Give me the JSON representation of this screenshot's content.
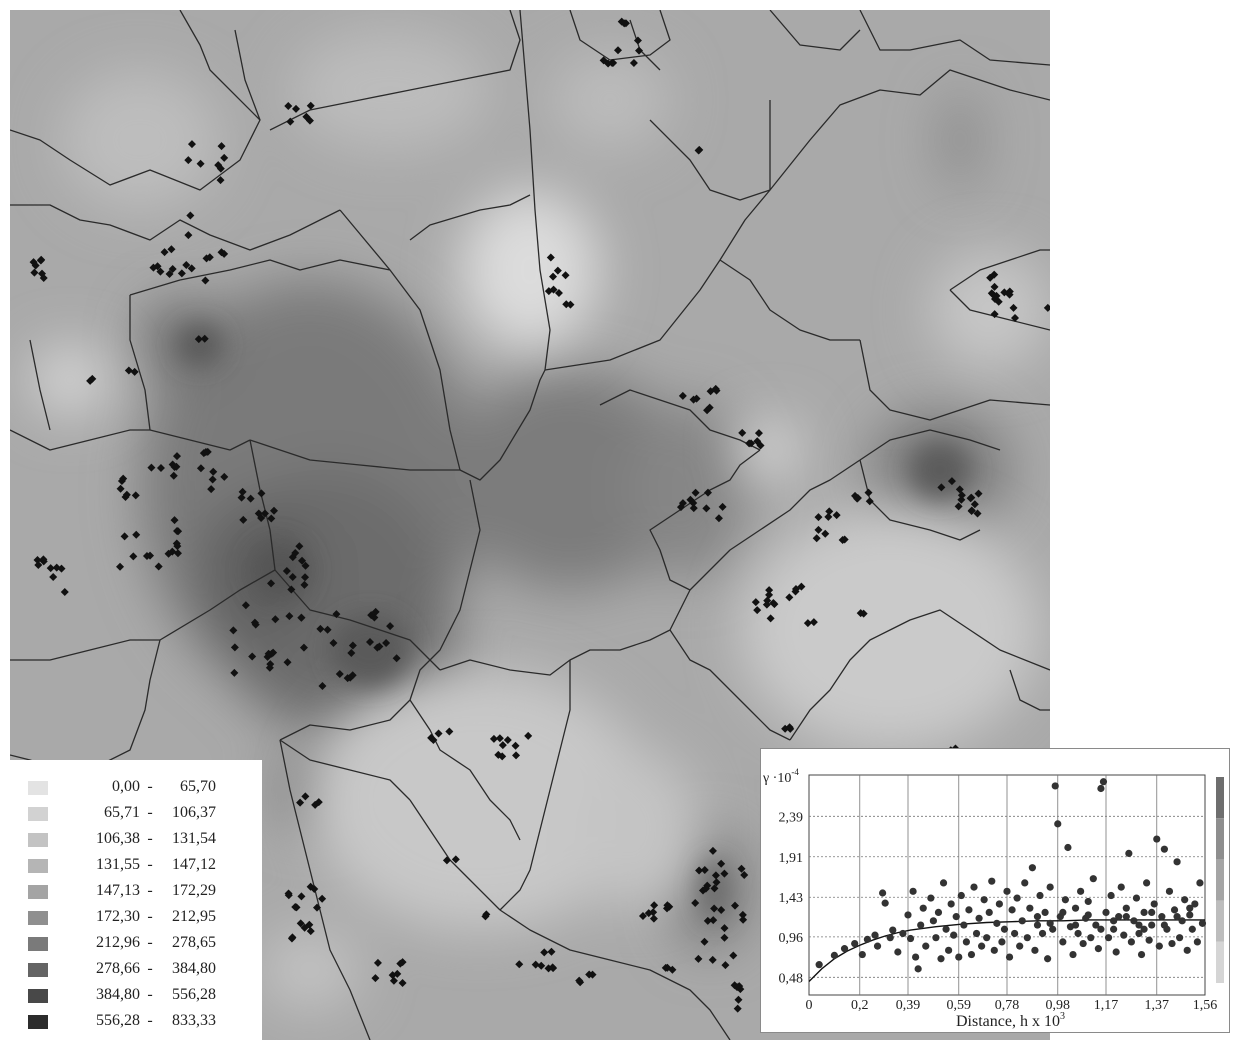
{
  "map": {
    "background_color": "#a9a9a9",
    "boundary_color": "#2a2a2a",
    "marker_color": "#111111",
    "marker_shape": "diamond"
  },
  "legend": {
    "separator": "-",
    "classes": [
      {
        "low": "0,00",
        "high": "65,70",
        "color": "#e3e3e3"
      },
      {
        "low": "65,71",
        "high": "106,37",
        "color": "#d2d2d2"
      },
      {
        "low": "106,38",
        "high": "131,54",
        "color": "#c3c3c3"
      },
      {
        "low": "131,55",
        "high": "147,12",
        "color": "#b5b5b5"
      },
      {
        "low": "147,13",
        "high": "172,29",
        "color": "#a4a4a4"
      },
      {
        "low": "172,30",
        "high": "212,95",
        "color": "#8f8f8f"
      },
      {
        "low": "212,96",
        "high": "278,65",
        "color": "#7a7a7a"
      },
      {
        "low": "278,66",
        "high": "384,80",
        "color": "#646464"
      },
      {
        "low": "384,80",
        "high": "556,28",
        "color": "#484848"
      },
      {
        "low": "556,28",
        "high": "833,33",
        "color": "#2c2c2c"
      }
    ]
  },
  "chart_data": {
    "type": "scatter",
    "ylabel": "γ ·10",
    "ylabel_exponent": "-4",
    "xlabel": "Distance, h x 10",
    "xlabel_exponent": "3",
    "x_ticks": [
      "0",
      "0,2",
      "0,39",
      "0,59",
      "0,78",
      "0,98",
      "1,17",
      "1,37",
      "1,56"
    ],
    "y_ticks": [
      "0,48",
      "0,96",
      "1,43",
      "1,91",
      "2,39"
    ],
    "xlim": [
      0,
      1.56
    ],
    "ylim": [
      0.27,
      2.88
    ],
    "grid": true,
    "points": [
      [
        0.04,
        0.63
      ],
      [
        0.1,
        0.74
      ],
      [
        0.14,
        0.82
      ],
      [
        0.18,
        0.88
      ],
      [
        0.21,
        0.75
      ],
      [
        0.23,
        0.93
      ],
      [
        0.26,
        0.98
      ],
      [
        0.27,
        0.85
      ],
      [
        0.29,
        1.48
      ],
      [
        0.3,
        1.36
      ],
      [
        0.32,
        0.95
      ],
      [
        0.33,
        1.04
      ],
      [
        0.35,
        0.78
      ],
      [
        0.37,
        1.0
      ],
      [
        0.39,
        1.22
      ],
      [
        0.4,
        0.94
      ],
      [
        0.41,
        1.5
      ],
      [
        0.42,
        0.72
      ],
      [
        0.43,
        0.58
      ],
      [
        0.44,
        1.1
      ],
      [
        0.45,
        1.3
      ],
      [
        0.46,
        0.85
      ],
      [
        0.48,
        1.42
      ],
      [
        0.49,
        1.15
      ],
      [
        0.5,
        0.95
      ],
      [
        0.51,
        1.25
      ],
      [
        0.52,
        0.7
      ],
      [
        0.53,
        1.6
      ],
      [
        0.54,
        1.05
      ],
      [
        0.55,
        0.8
      ],
      [
        0.56,
        1.35
      ],
      [
        0.57,
        0.98
      ],
      [
        0.58,
        1.2
      ],
      [
        0.59,
        0.72
      ],
      [
        0.6,
        1.45
      ],
      [
        0.61,
        1.1
      ],
      [
        0.62,
        0.9
      ],
      [
        0.63,
        1.28
      ],
      [
        0.64,
        0.75
      ],
      [
        0.65,
        1.55
      ],
      [
        0.66,
        1.0
      ],
      [
        0.67,
        1.18
      ],
      [
        0.68,
        0.85
      ],
      [
        0.69,
        1.4
      ],
      [
        0.7,
        0.95
      ],
      [
        0.71,
        1.25
      ],
      [
        0.72,
        1.62
      ],
      [
        0.73,
        0.8
      ],
      [
        0.74,
        1.12
      ],
      [
        0.75,
        1.35
      ],
      [
        0.76,
        0.9
      ],
      [
        0.77,
        1.05
      ],
      [
        0.78,
        1.5
      ],
      [
        0.79,
        0.72
      ],
      [
        0.8,
        1.28
      ],
      [
        0.81,
        1.0
      ],
      [
        0.82,
        1.42
      ],
      [
        0.83,
        0.85
      ],
      [
        0.84,
        1.15
      ],
      [
        0.85,
        1.6
      ],
      [
        0.86,
        0.95
      ],
      [
        0.87,
        1.3
      ],
      [
        0.88,
        1.78
      ],
      [
        0.89,
        0.8
      ],
      [
        0.9,
        1.1
      ],
      [
        0.91,
        1.45
      ],
      [
        0.92,
        1.0
      ],
      [
        0.93,
        1.25
      ],
      [
        0.94,
        0.7
      ],
      [
        0.95,
        1.55
      ],
      [
        0.96,
        1.05
      ],
      [
        0.97,
        2.75
      ],
      [
        0.98,
        2.3
      ],
      [
        0.99,
        1.2
      ],
      [
        1.0,
        0.9
      ],
      [
        1.01,
        1.4
      ],
      [
        1.02,
        2.02
      ],
      [
        1.03,
        1.08
      ],
      [
        1.04,
        0.75
      ],
      [
        1.05,
        1.3
      ],
      [
        1.06,
        1.0
      ],
      [
        1.07,
        1.5
      ],
      [
        1.08,
        0.88
      ],
      [
        1.09,
        1.18
      ],
      [
        1.1,
        1.38
      ],
      [
        1.11,
        0.95
      ],
      [
        1.12,
        1.65
      ],
      [
        1.13,
        1.1
      ],
      [
        1.14,
        0.82
      ],
      [
        1.15,
        2.72
      ],
      [
        1.16,
        2.8
      ],
      [
        1.17,
        1.25
      ],
      [
        1.18,
        0.95
      ],
      [
        1.19,
        1.45
      ],
      [
        1.2,
        1.05
      ],
      [
        1.21,
        0.78
      ],
      [
        1.22,
        1.2
      ],
      [
        1.23,
        1.55
      ],
      [
        1.24,
        0.98
      ],
      [
        1.25,
        1.3
      ],
      [
        1.26,
        1.95
      ],
      [
        1.27,
        0.9
      ],
      [
        1.28,
        1.15
      ],
      [
        1.29,
        1.42
      ],
      [
        1.3,
        1.0
      ],
      [
        1.31,
        0.75
      ],
      [
        1.32,
        1.25
      ],
      [
        1.33,
        1.6
      ],
      [
        1.34,
        0.92
      ],
      [
        1.35,
        1.1
      ],
      [
        1.36,
        1.35
      ],
      [
        1.37,
        2.12
      ],
      [
        1.38,
        0.85
      ],
      [
        1.39,
        1.2
      ],
      [
        1.4,
        2.0
      ],
      [
        1.41,
        1.05
      ],
      [
        1.42,
        1.5
      ],
      [
        1.43,
        0.88
      ],
      [
        1.44,
        1.28
      ],
      [
        1.45,
        1.85
      ],
      [
        1.46,
        0.95
      ],
      [
        1.47,
        1.15
      ],
      [
        1.48,
        1.4
      ],
      [
        1.49,
        0.8
      ],
      [
        1.5,
        1.22
      ],
      [
        1.51,
        1.05
      ],
      [
        1.52,
        1.35
      ],
      [
        1.53,
        0.9
      ],
      [
        1.54,
        1.6
      ],
      [
        1.55,
        1.12
      ],
      [
        1.15,
        1.05
      ],
      [
        1.2,
        1.15
      ],
      [
        1.25,
        1.2
      ],
      [
        1.3,
        1.1
      ],
      [
        1.35,
        1.25
      ],
      [
        1.4,
        1.1
      ],
      [
        1.45,
        1.2
      ],
      [
        1.5,
        1.3
      ],
      [
        1.05,
        1.1
      ],
      [
        1.0,
        1.25
      ],
      [
        0.95,
        1.12
      ],
      [
        0.9,
        1.2
      ],
      [
        1.1,
        1.22
      ],
      [
        1.32,
        1.05
      ]
    ],
    "model_curve": [
      [
        0.0,
        0.43
      ],
      [
        0.05,
        0.58
      ],
      [
        0.1,
        0.7
      ],
      [
        0.15,
        0.79
      ],
      [
        0.2,
        0.86
      ],
      [
        0.25,
        0.92
      ],
      [
        0.3,
        0.97
      ],
      [
        0.35,
        1.01
      ],
      [
        0.4,
        1.04
      ],
      [
        0.5,
        1.08
      ],
      [
        0.6,
        1.11
      ],
      [
        0.7,
        1.13
      ],
      [
        0.8,
        1.14
      ],
      [
        0.9,
        1.15
      ],
      [
        1.0,
        1.15
      ],
      [
        1.1,
        1.16
      ],
      [
        1.2,
        1.16
      ],
      [
        1.3,
        1.16
      ],
      [
        1.4,
        1.16
      ],
      [
        1.56,
        1.16
      ]
    ],
    "colorbar_colors": [
      "#6e6e6e",
      "#8e8e8e",
      "#a5a5a5",
      "#bdbdbd",
      "#d5d5d5"
    ]
  }
}
